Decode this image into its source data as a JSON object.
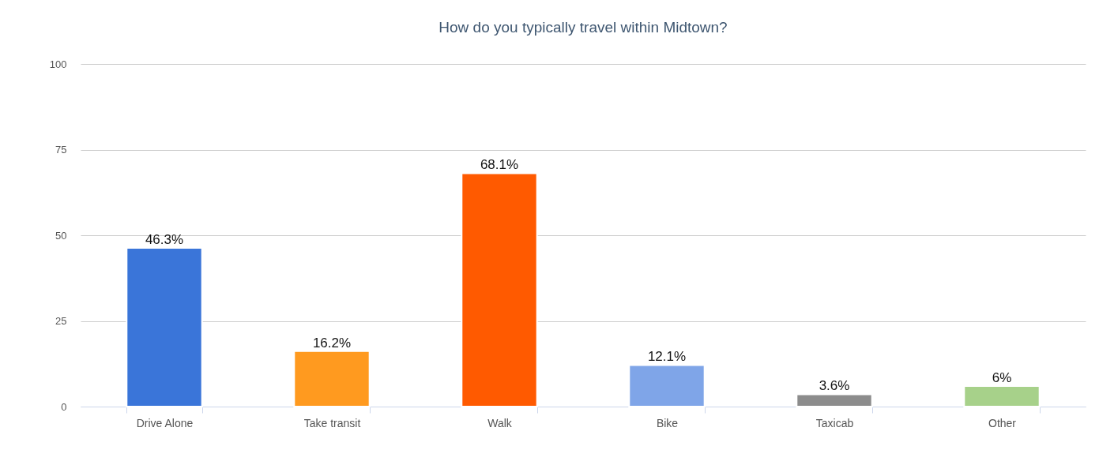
{
  "chart_data": {
    "type": "bar",
    "title": "How do you typically travel within Midtown?",
    "categories": [
      "Drive Alone",
      "Take transit",
      "Walk",
      "Bike",
      "Taxicab",
      "Other"
    ],
    "values": [
      46.3,
      16.2,
      68.1,
      12.1,
      3.6,
      6
    ],
    "value_labels": [
      "46.3%",
      "16.2%",
      "68.1%",
      "12.1%",
      "3.6%",
      "6%"
    ],
    "colors": [
      "#3a75d9",
      "#ff9a1f",
      "#ff5a00",
      "#7fa5e8",
      "#8c8c8c",
      "#a7d18a"
    ],
    "ylim": [
      0,
      100
    ],
    "yticks": [
      0,
      25,
      50,
      75,
      100
    ],
    "grid": "y"
  }
}
